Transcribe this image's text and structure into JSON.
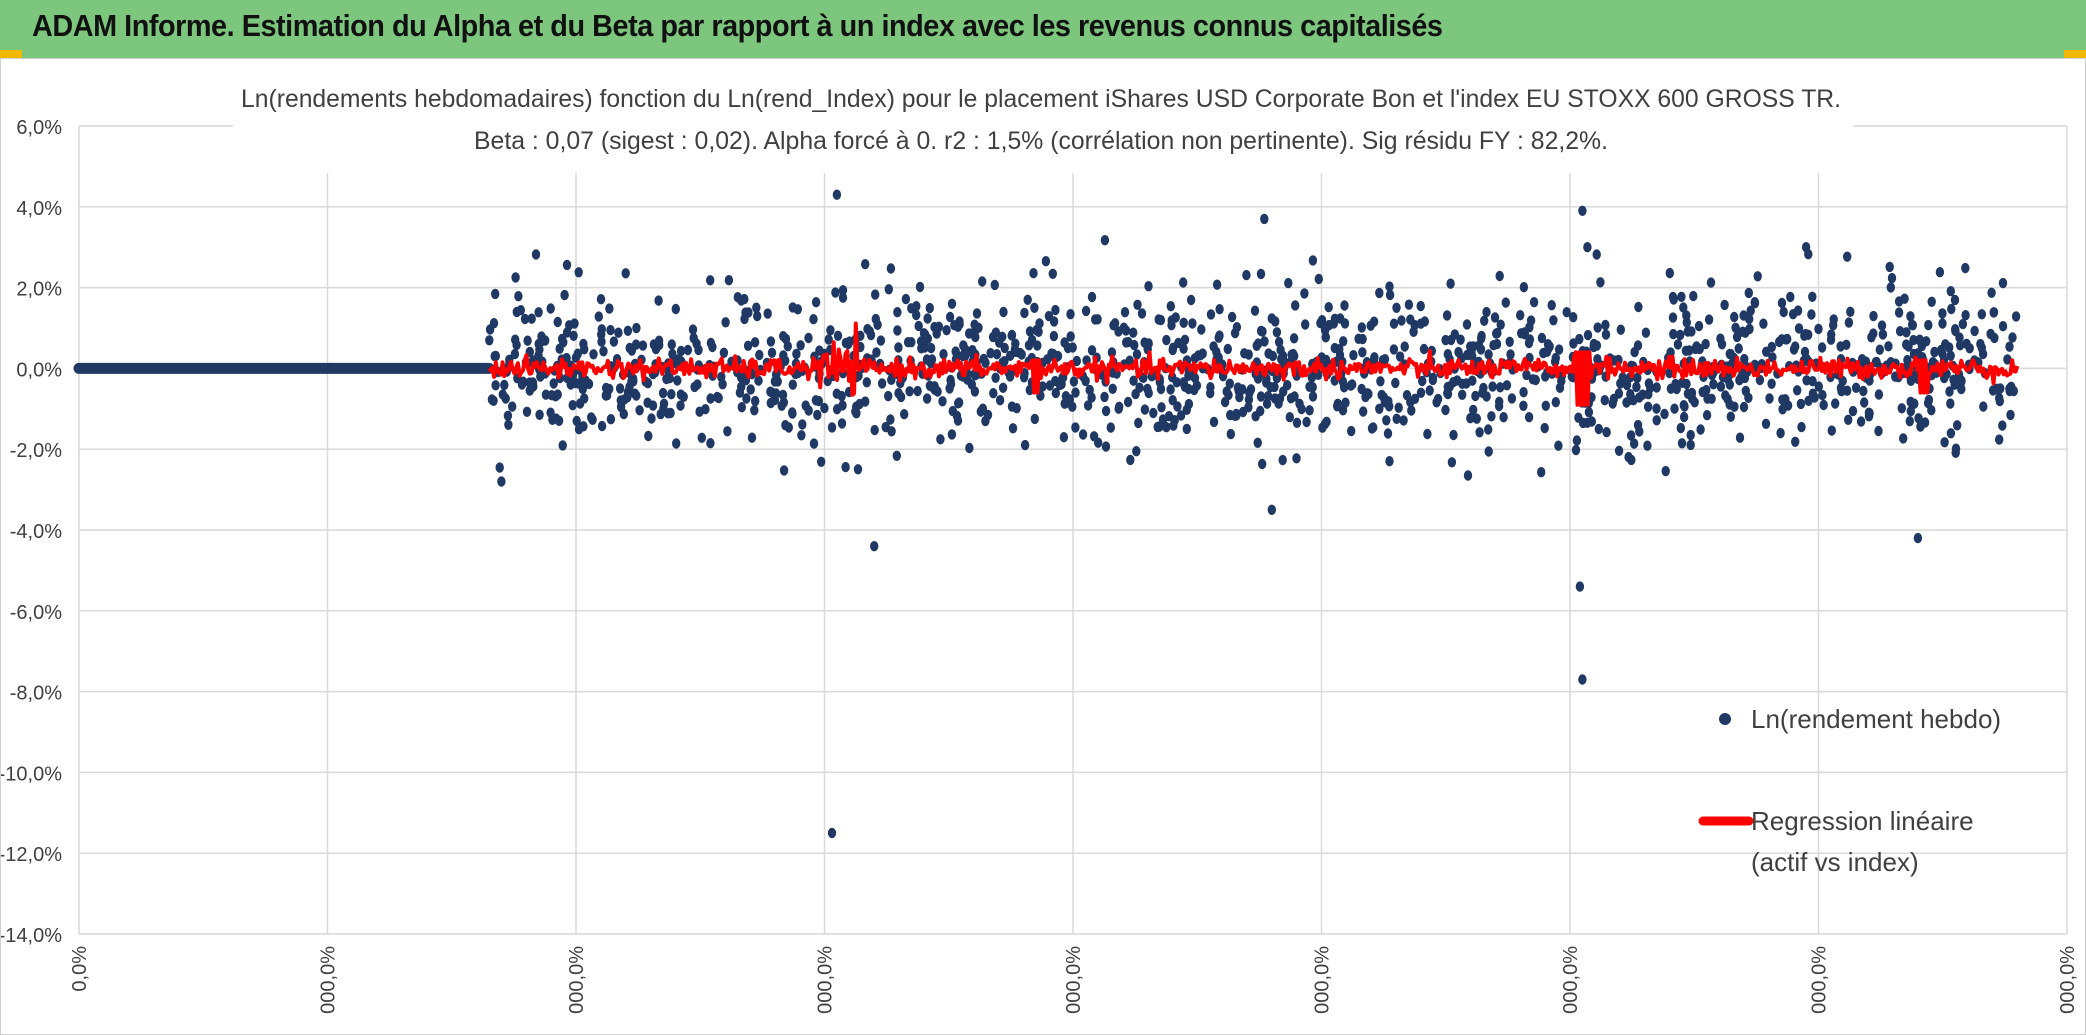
{
  "header": {
    "title": "ADAM Informe. Estimation du Alpha et du Beta par rapport à un index avec les revenus connus capitalisés"
  },
  "colors": {
    "banner": "#7dc67e",
    "points": "#1f3864",
    "regression": "#ff0000",
    "grid": "#d9d9d9"
  },
  "chart_data": {
    "type": "scatter",
    "title_line1": "Ln(rendements hebdomadaires) fonction du Ln(rend_Index) pour le placement iShares USD Corporate Bon et l'index EU STOXX 600 GROSS TR.",
    "title_line2": "Beta : 0,07 (sigest : 0,02). Alpha forcé à 0. r2 : 1,5% (corrélation non pertinente). Sig résidu FY : 82,2%.",
    "xlabel": "",
    "ylabel": "",
    "ylim": [
      -0.14,
      0.06
    ],
    "xlim": [
      0,
      8
    ],
    "y_ticks": [
      "6,0%",
      "4,0%",
      "2,0%",
      "0,0%",
      "-2,0%",
      "-4,0%",
      "-6,0%",
      "-8,0%",
      "-10,0%",
      "-12,0%",
      "-14,0%"
    ],
    "x_ticks": [
      "0,0%",
      "000,0%",
      "000,0%",
      "000,0%",
      "000,0%",
      "000,0%",
      "000,0%",
      "000,0%",
      "000,0%"
    ],
    "grid": true,
    "legend_position": "right",
    "series": [
      {
        "name": "Ln(rendement hebdo)",
        "kind": "scatter",
        "marker": "dot"
      },
      {
        "name": "Regression linéaire (actif vs index)",
        "label_line1": "Regression linéaire",
        "label_line2": "(actif vs index)",
        "kind": "line"
      }
    ],
    "data_x_start": 1.65,
    "data_x_end": 7.8,
    "flat_segment": {
      "x_from": 0,
      "x_to": 1.65,
      "y": 0
    },
    "outliers": [
      {
        "x": 3.03,
        "y": -0.115
      },
      {
        "x": 6.05,
        "y": -0.077
      },
      {
        "x": 6.04,
        "y": -0.054
      },
      {
        "x": 7.4,
        "y": -0.042
      },
      {
        "x": 3.05,
        "y": 0.043
      },
      {
        "x": 3.2,
        "y": -0.044
      },
      {
        "x": 6.05,
        "y": 0.039
      },
      {
        "x": 4.77,
        "y": 0.037
      },
      {
        "x": 4.8,
        "y": -0.035
      },
      {
        "x": 1.7,
        "y": -0.028
      },
      {
        "x": 6.07,
        "y": 0.03
      },
      {
        "x": 6.95,
        "y": 0.03
      }
    ]
  }
}
